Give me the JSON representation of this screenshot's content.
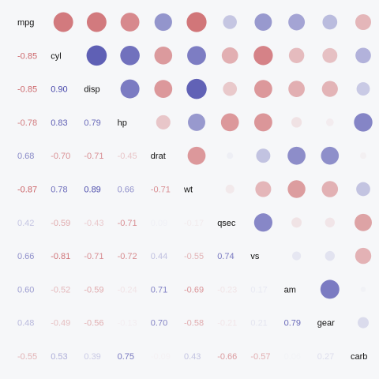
{
  "chart_data": {
    "type": "heatmap",
    "title": "",
    "variables": [
      "mpg",
      "cyl",
      "disp",
      "hp",
      "drat",
      "wt",
      "qsec",
      "vs",
      "am",
      "gear",
      "carb"
    ],
    "matrix": [
      [
        1.0,
        -0.85,
        -0.85,
        -0.78,
        0.68,
        -0.87,
        0.42,
        0.66,
        0.6,
        0.48,
        -0.55
      ],
      [
        -0.85,
        1.0,
        0.9,
        0.83,
        -0.7,
        0.78,
        -0.59,
        -0.81,
        -0.52,
        -0.49,
        0.53
      ],
      [
        -0.85,
        0.9,
        1.0,
        0.79,
        -0.71,
        0.89,
        -0.43,
        -0.71,
        -0.59,
        -0.56,
        0.39
      ],
      [
        -0.78,
        0.83,
        0.79,
        1.0,
        -0.45,
        0.66,
        -0.71,
        -0.72,
        -0.24,
        -0.13,
        0.75
      ],
      [
        0.68,
        -0.7,
        -0.71,
        -0.45,
        1.0,
        -0.71,
        0.09,
        0.44,
        0.71,
        0.7,
        -0.09
      ],
      [
        -0.87,
        0.78,
        0.89,
        0.66,
        -0.71,
        1.0,
        -0.17,
        -0.55,
        -0.69,
        -0.58,
        0.43
      ],
      [
        0.42,
        -0.59,
        -0.43,
        -0.71,
        0.09,
        -0.17,
        1.0,
        0.74,
        -0.23,
        -0.21,
        -0.66
      ],
      [
        0.66,
        -0.81,
        -0.71,
        -0.72,
        0.44,
        -0.55,
        0.74,
        1.0,
        0.17,
        0.21,
        -0.57
      ],
      [
        0.6,
        -0.52,
        -0.59,
        -0.24,
        0.71,
        -0.69,
        -0.23,
        0.17,
        1.0,
        0.79,
        0.06
      ],
      [
        0.48,
        -0.49,
        -0.56,
        -0.13,
        0.7,
        -0.58,
        -0.21,
        0.21,
        0.79,
        1.0,
        0.27
      ],
      [
        -0.55,
        0.53,
        0.39,
        0.75,
        -0.09,
        0.43,
        -0.66,
        -0.57,
        0.06,
        0.27,
        1.0
      ]
    ],
    "upper_triangle": "circles",
    "lower_triangle": "numbers",
    "value_range": [
      -1,
      1
    ],
    "colors": {
      "negative": "#c0393e",
      "positive": "#24249a",
      "background": "#f6f7f9"
    },
    "grid": false,
    "legend": "none"
  }
}
